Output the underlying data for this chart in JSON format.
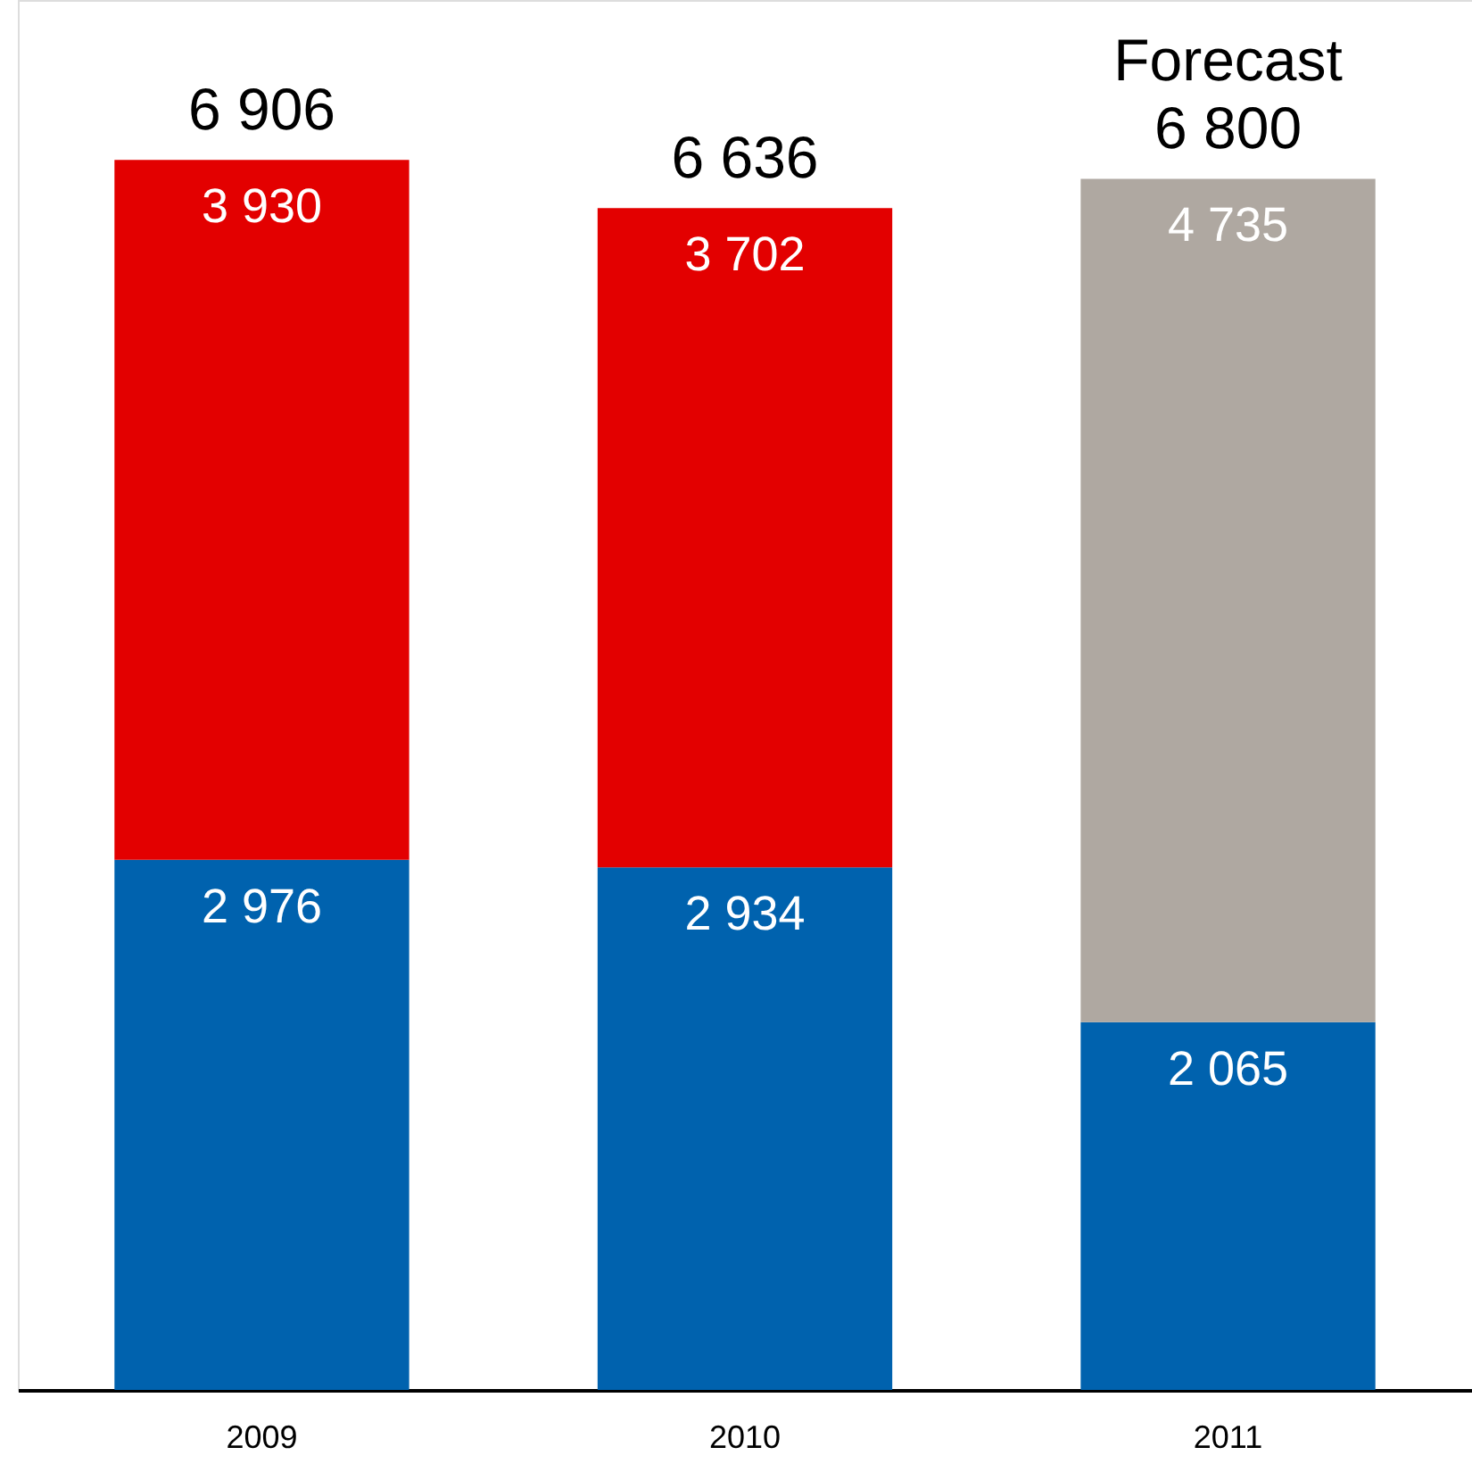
{
  "chart_data": {
    "type": "bar",
    "stacked": true,
    "categories": [
      "2009",
      "2010",
      "2011"
    ],
    "series": [
      {
        "values": [
          2976,
          2934,
          2065
        ],
        "color": "#0062ae",
        "value_labels": [
          "2 976",
          "2 934",
          "2 065"
        ]
      },
      {
        "values": [
          3930,
          3702,
          4735
        ],
        "colors": [
          "#e30000",
          "#e30000",
          "#afa8a1"
        ],
        "value_labels": [
          "3 930",
          "3 702",
          "4 735"
        ]
      }
    ],
    "totals": [
      "6 906",
      "6 636",
      "6 800"
    ],
    "annotations": [
      {
        "text": "Forecast",
        "x": "2011",
        "y": 6800
      }
    ],
    "grid": false,
    "legend": false
  }
}
